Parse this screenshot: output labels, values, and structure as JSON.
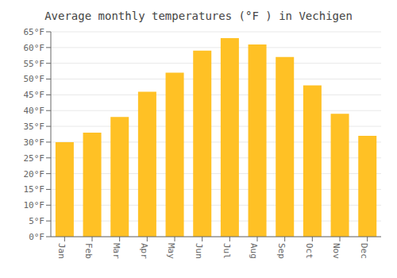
{
  "chart_data": {
    "type": "bar",
    "title": "Average monthly temperatures (°F ) in Vechigen",
    "categories": [
      "Jan",
      "Feb",
      "Mar",
      "Apr",
      "May",
      "Jun",
      "Jul",
      "Aug",
      "Sep",
      "Oct",
      "Nov",
      "Dec"
    ],
    "values": [
      30,
      33,
      38,
      46,
      52,
      59,
      63,
      61,
      57,
      48,
      39,
      32
    ],
    "color": "#FFC125",
    "ylim": [
      0,
      65
    ],
    "yticks": [
      {
        "value": 0,
        "label": "0°F"
      },
      {
        "value": 5,
        "label": "5°F"
      },
      {
        "value": 10,
        "label": "10°F"
      },
      {
        "value": 15,
        "label": "15°F"
      },
      {
        "value": 20,
        "label": "20°F"
      },
      {
        "value": 25,
        "label": "25°F"
      },
      {
        "value": 30,
        "label": "30°F"
      },
      {
        "value": 35,
        "label": "35°F"
      },
      {
        "value": 40,
        "label": "40°F"
      },
      {
        "value": 45,
        "label": "45°F"
      },
      {
        "value": 50,
        "label": "50°F"
      },
      {
        "value": 55,
        "label": "55°F"
      },
      {
        "value": 60,
        "label": "60°F"
      },
      {
        "value": 65,
        "label": "65°F"
      }
    ],
    "grid": true
  }
}
